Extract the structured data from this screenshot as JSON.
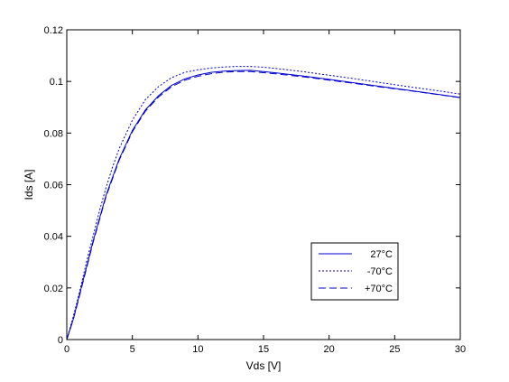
{
  "chart_data": {
    "type": "line",
    "title": "",
    "xlabel": "Vds [V]",
    "ylabel": "Ids [A]",
    "xlim": [
      0,
      30
    ],
    "ylim": [
      0,
      0.12
    ],
    "xticks": [
      0,
      5,
      10,
      15,
      20,
      25,
      30
    ],
    "xtick_labels": [
      "0",
      "5",
      "10",
      "15",
      "20",
      "25",
      "30"
    ],
    "yticks": [
      0,
      0.02,
      0.04,
      0.06,
      0.08,
      0.1,
      0.12
    ],
    "ytick_labels": [
      "0",
      "0.02",
      "0.04",
      "0.06",
      "0.08",
      "0.1",
      "0.12"
    ],
    "grid": false,
    "legend_position": "lower-right",
    "series": [
      {
        "name": "27°C",
        "style": "solid",
        "color": "#0000cc",
        "x": [
          0,
          0.5,
          1,
          1.5,
          2,
          2.5,
          3,
          3.5,
          4,
          5,
          6,
          7,
          8,
          9,
          10,
          11,
          12,
          13,
          14,
          15,
          16,
          18,
          20,
          22,
          24,
          26,
          28,
          30
        ],
        "y": [
          0,
          0.008,
          0.018,
          0.028,
          0.038,
          0.047,
          0.056,
          0.063,
          0.07,
          0.081,
          0.089,
          0.0945,
          0.0985,
          0.101,
          0.1025,
          0.1035,
          0.104,
          0.1042,
          0.1043,
          0.1038,
          0.1033,
          0.1021,
          0.1008,
          0.0994,
          0.098,
          0.0966,
          0.0952,
          0.0938
        ]
      },
      {
        "name": "-70°C",
        "style": "dotted",
        "color": "#0000cc",
        "x": [
          0,
          0.5,
          1,
          1.5,
          2,
          2.5,
          3,
          3.5,
          4,
          5,
          6,
          7,
          8,
          9,
          10,
          11,
          12,
          13,
          14,
          15,
          16,
          18,
          20,
          22,
          24,
          26,
          28,
          30
        ],
        "y": [
          0,
          0.009,
          0.019,
          0.03,
          0.04,
          0.05,
          0.059,
          0.067,
          0.074,
          0.085,
          0.093,
          0.098,
          0.1015,
          0.1035,
          0.1045,
          0.1052,
          0.1056,
          0.1058,
          0.1058,
          0.1055,
          0.105,
          0.1038,
          0.1024,
          0.101,
          0.0995,
          0.098,
          0.0966,
          0.0951
        ]
      },
      {
        "name": "+70°C",
        "style": "dashed",
        "color": "#0000cc",
        "x": [
          0,
          0.5,
          1,
          1.5,
          2,
          2.5,
          3,
          3.5,
          4,
          5,
          6,
          7,
          8,
          9,
          10,
          11,
          12,
          13,
          14,
          15,
          16,
          18,
          20,
          22,
          24,
          26,
          28,
          30
        ],
        "y": [
          0,
          0.0078,
          0.0175,
          0.0275,
          0.0375,
          0.0465,
          0.0555,
          0.0625,
          0.0695,
          0.0805,
          0.0885,
          0.094,
          0.098,
          0.1005,
          0.102,
          0.103,
          0.1036,
          0.1038,
          0.1038,
          0.1034,
          0.1029,
          0.1018,
          0.1005,
          0.0992,
          0.0978,
          0.0965,
          0.0951,
          0.0937
        ]
      }
    ]
  }
}
